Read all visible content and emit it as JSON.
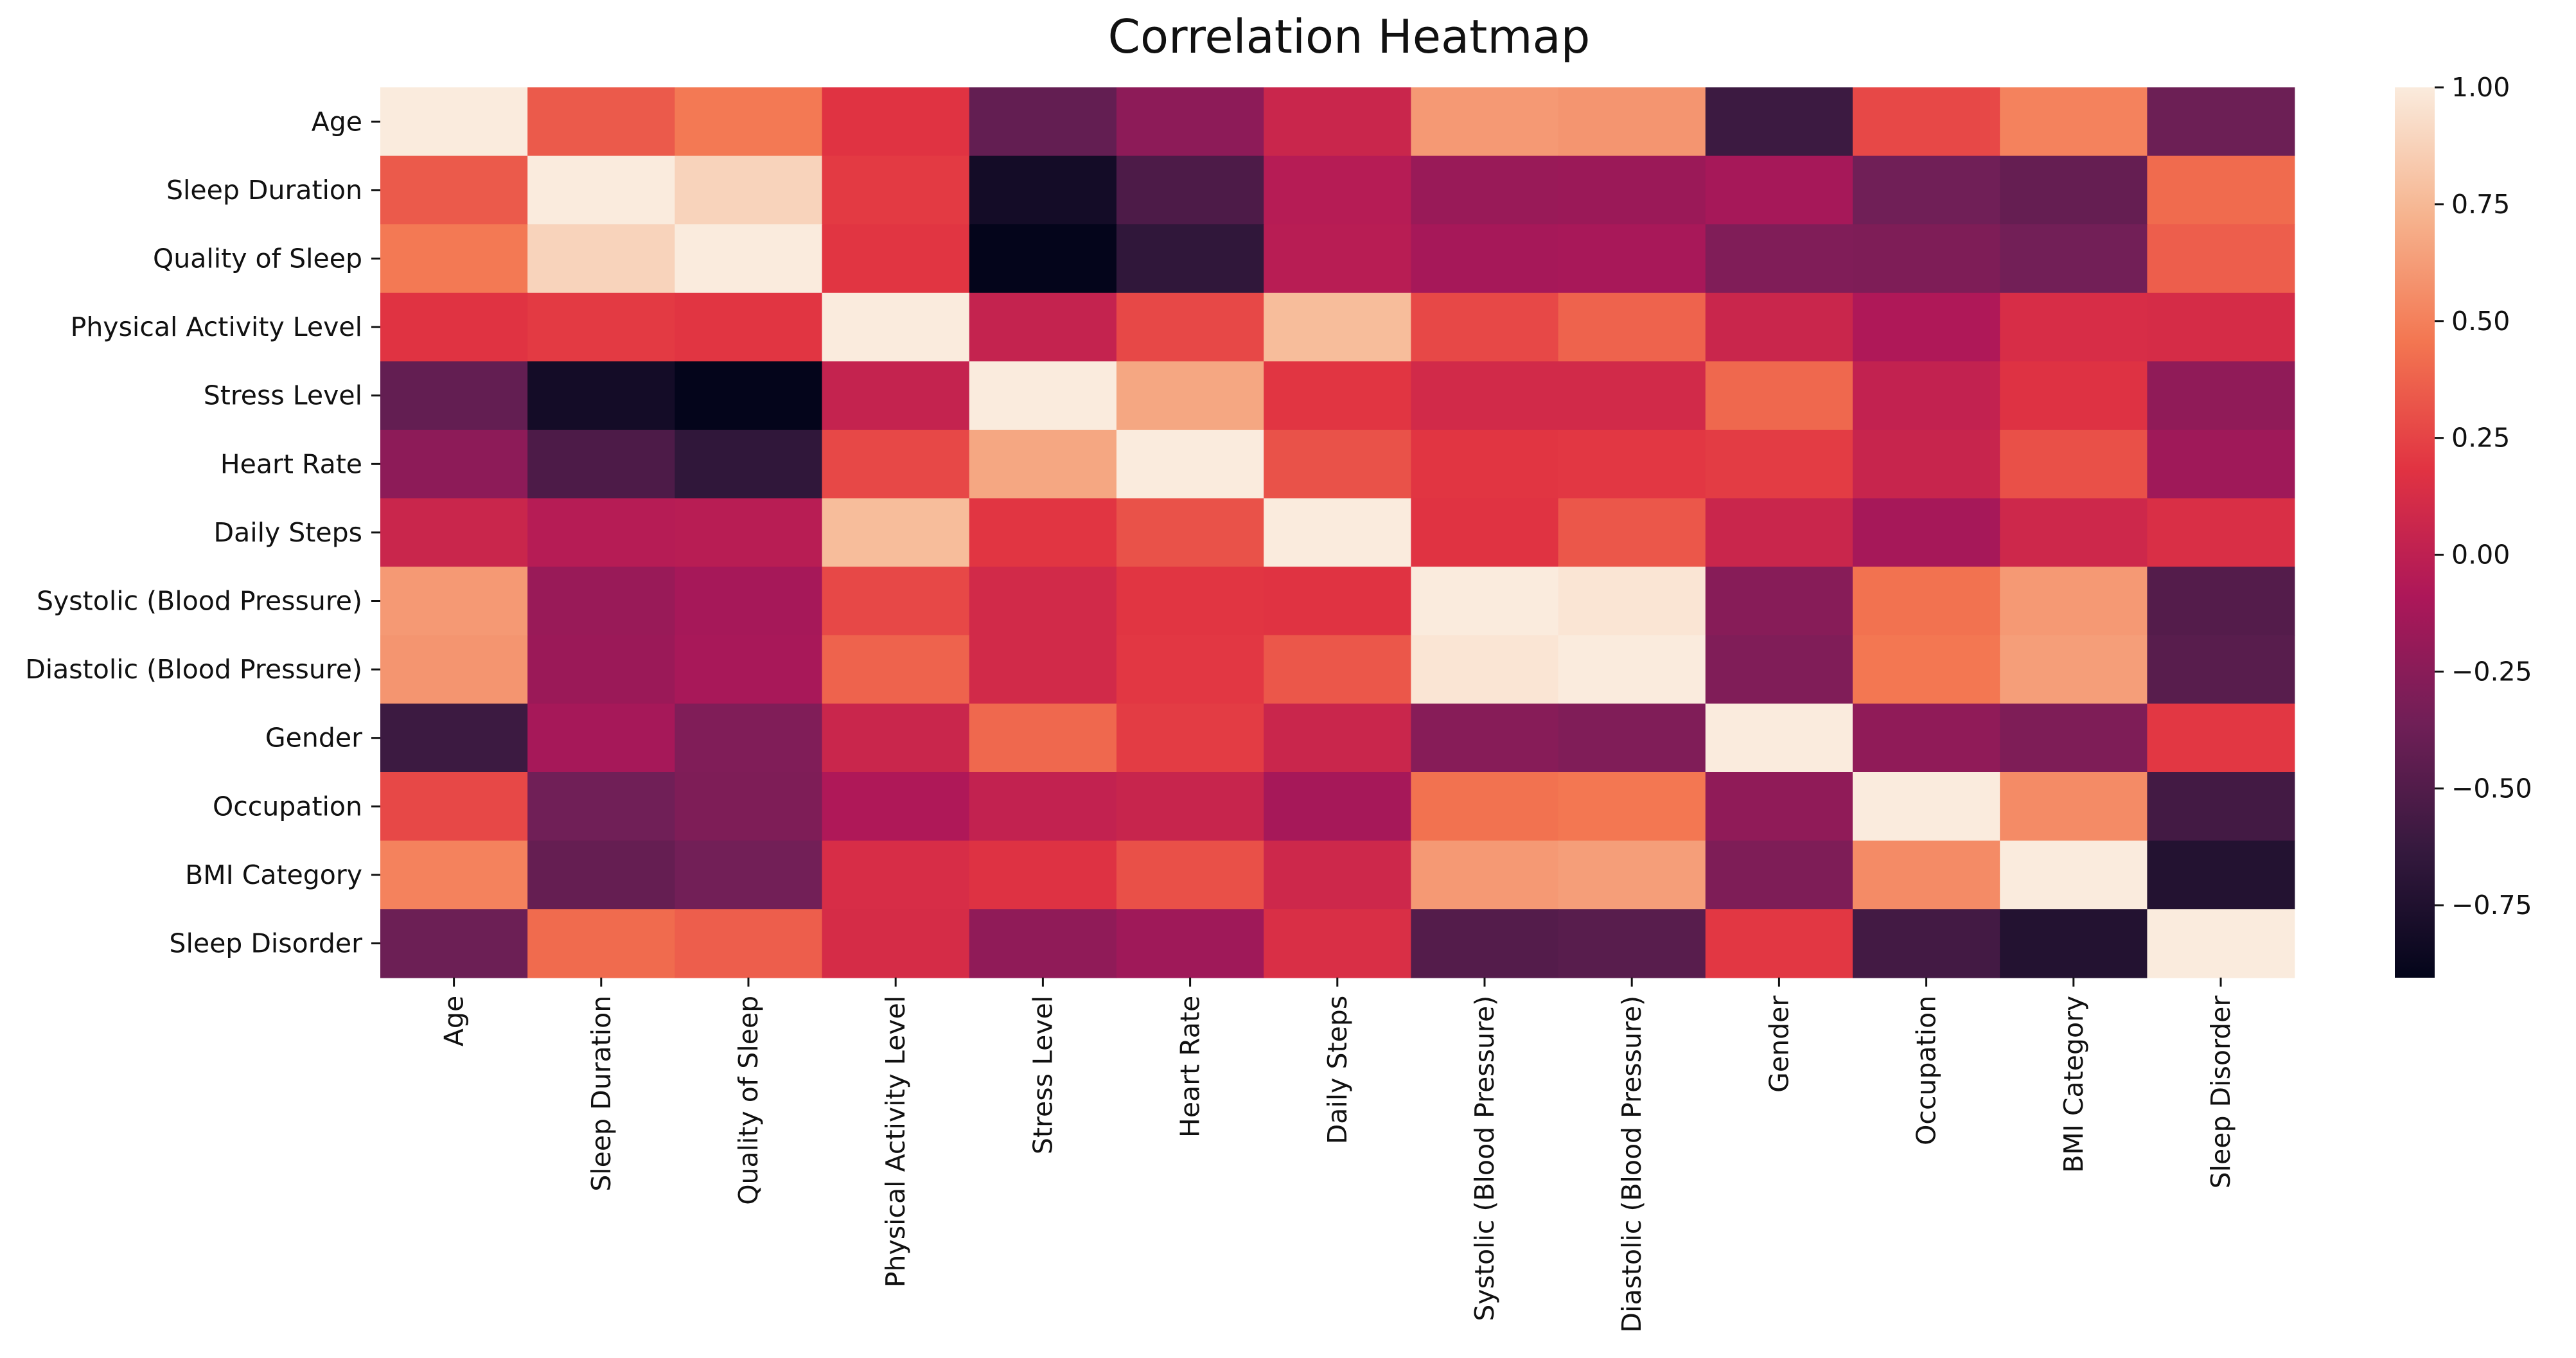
{
  "chart_data": {
    "type": "heatmap",
    "title": "Correlation Heatmap",
    "xlabel": "",
    "ylabel": "",
    "rows": [
      "Age",
      "Sleep Duration",
      "Quality of Sleep",
      "Physical Activity Level",
      "Stress Level",
      "Heart Rate",
      "Daily Steps",
      "Systolic (Blood Pressure)",
      "Diastolic (Blood Pressure)",
      "Gender",
      "Occupation",
      "BMI Category",
      "Sleep Disorder"
    ],
    "columns": [
      "Age",
      "Sleep Duration",
      "Quality of Sleep",
      "Physical Activity Level",
      "Stress Level",
      "Heart Rate",
      "Daily Steps",
      "Systolic (Blood Pressure)",
      "Diastolic (Blood Pressure)",
      "Gender",
      "Occupation",
      "BMI Category",
      "Sleep Disorder"
    ],
    "values": [
      [
        1.0,
        0.34,
        0.47,
        0.18,
        -0.42,
        -0.23,
        0.06,
        0.61,
        0.59,
        -0.6,
        0.27,
        0.51,
        -0.38
      ],
      [
        0.34,
        1.0,
        0.88,
        0.21,
        -0.81,
        -0.52,
        -0.04,
        -0.18,
        -0.17,
        -0.12,
        -0.36,
        -0.41,
        0.41
      ],
      [
        0.47,
        0.88,
        1.0,
        0.19,
        -0.9,
        -0.66,
        -0.03,
        -0.12,
        -0.11,
        -0.29,
        -0.3,
        -0.35,
        0.36
      ],
      [
        0.18,
        0.21,
        0.19,
        1.0,
        0.03,
        0.27,
        0.77,
        0.27,
        0.38,
        0.06,
        -0.08,
        0.13,
        0.12
      ],
      [
        -0.42,
        -0.81,
        -0.9,
        0.03,
        1.0,
        0.67,
        0.19,
        0.1,
        0.1,
        0.4,
        0.02,
        0.17,
        -0.22
      ],
      [
        -0.23,
        -0.52,
        -0.66,
        0.27,
        0.67,
        1.0,
        0.31,
        0.19,
        0.2,
        0.22,
        0.05,
        0.3,
        -0.15
      ],
      [
        0.06,
        -0.04,
        -0.03,
        0.77,
        0.19,
        0.31,
        1.0,
        0.18,
        0.33,
        0.06,
        -0.12,
        0.08,
        0.14
      ],
      [
        0.61,
        -0.18,
        -0.12,
        0.27,
        0.1,
        0.19,
        0.18,
        1.0,
        0.97,
        -0.26,
        0.44,
        0.61,
        -0.49
      ],
      [
        0.59,
        -0.17,
        -0.11,
        0.38,
        0.1,
        0.2,
        0.33,
        0.97,
        1.0,
        -0.29,
        0.46,
        0.63,
        -0.47
      ],
      [
        -0.6,
        -0.12,
        -0.29,
        0.06,
        0.4,
        0.22,
        0.06,
        -0.26,
        -0.29,
        1.0,
        -0.22,
        -0.3,
        0.2
      ],
      [
        0.27,
        -0.36,
        -0.3,
        -0.08,
        0.02,
        0.05,
        -0.12,
        0.44,
        0.46,
        -0.22,
        1.0,
        0.55,
        -0.57
      ],
      [
        0.51,
        -0.41,
        -0.35,
        0.13,
        0.17,
        0.3,
        0.08,
        0.61,
        0.63,
        -0.3,
        0.55,
        1.0,
        -0.73
      ],
      [
        -0.38,
        0.41,
        0.36,
        0.12,
        -0.22,
        -0.15,
        0.14,
        -0.49,
        -0.47,
        0.2,
        -0.57,
        -0.73,
        1.0
      ]
    ],
    "colorbar": {
      "ticks": [
        1.0,
        0.75,
        0.5,
        0.25,
        0.0,
        -0.25,
        -0.5,
        -0.75
      ],
      "tick_labels": [
        "1.00",
        "0.75",
        "0.50",
        "0.25",
        "0.00",
        "−0.25",
        "−0.50",
        "−0.75"
      ],
      "vmin": -0.905,
      "vmax": 1.0
    },
    "colormap": "rocket",
    "colormap_stops": [
      "#03051a",
      "#35193e",
      "#701f57",
      "#ad1759",
      "#e13342",
      "#f37651",
      "#f6b48f",
      "#faebdd"
    ]
  }
}
